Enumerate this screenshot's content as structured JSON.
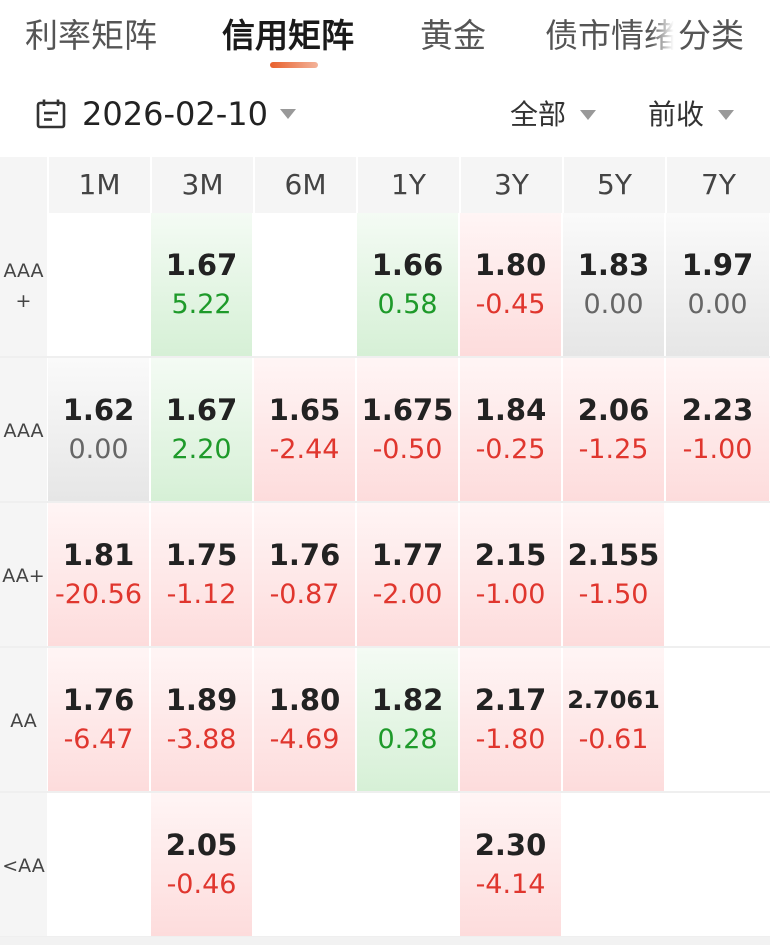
{
  "tabs": [
    {
      "label": "利率矩阵",
      "active": false
    },
    {
      "label": "信用矩阵",
      "active": true
    },
    {
      "label": "黄金",
      "active": false
    },
    {
      "label": "债市情绪",
      "active": false
    },
    {
      "label": "分类",
      "active": false
    }
  ],
  "filter": {
    "date": "2026-02-10",
    "scope": "全部",
    "compare": "前收",
    "icons": {
      "calendar": "calendar-icon",
      "caret": "caret-down-icon"
    }
  },
  "grid": {
    "columns": [
      "1M",
      "3M",
      "6M",
      "1Y",
      "3Y",
      "5Y",
      "7Y"
    ],
    "rows": [
      {
        "label": "AAA\n+",
        "cells": [
          null,
          {
            "value": "1.67",
            "change": "5.22",
            "trend": "green"
          },
          null,
          {
            "value": "1.66",
            "change": "0.58",
            "trend": "green"
          },
          {
            "value": "1.80",
            "change": "-0.45",
            "trend": "red"
          },
          {
            "value": "1.83",
            "change": "0.00",
            "trend": "gray"
          },
          {
            "value": "1.97",
            "change": "0.00",
            "trend": "gray"
          }
        ]
      },
      {
        "label": "AAA",
        "cells": [
          {
            "value": "1.62",
            "change": "0.00",
            "trend": "gray"
          },
          {
            "value": "1.67",
            "change": "2.20",
            "trend": "green"
          },
          {
            "value": "1.65",
            "change": "-2.44",
            "trend": "red"
          },
          {
            "value": "1.675",
            "change": "-0.50",
            "trend": "red"
          },
          {
            "value": "1.84",
            "change": "-0.25",
            "trend": "red"
          },
          {
            "value": "2.06",
            "change": "-1.25",
            "trend": "red"
          },
          {
            "value": "2.23",
            "change": "-1.00",
            "trend": "red"
          }
        ]
      },
      {
        "label": "AA+",
        "cells": [
          {
            "value": "1.81",
            "change": "-20.56",
            "trend": "red"
          },
          {
            "value": "1.75",
            "change": "-1.12",
            "trend": "red"
          },
          {
            "value": "1.76",
            "change": "-0.87",
            "trend": "red"
          },
          {
            "value": "1.77",
            "change": "-2.00",
            "trend": "red"
          },
          {
            "value": "2.15",
            "change": "-1.00",
            "trend": "red"
          },
          {
            "value": "2.155",
            "change": "-1.50",
            "trend": "red"
          },
          null
        ]
      },
      {
        "label": "AA",
        "cells": [
          {
            "value": "1.76",
            "change": "-6.47",
            "trend": "red"
          },
          {
            "value": "1.89",
            "change": "-3.88",
            "trend": "red"
          },
          {
            "value": "1.80",
            "change": "-4.69",
            "trend": "red"
          },
          {
            "value": "1.82",
            "change": "0.28",
            "trend": "green"
          },
          {
            "value": "2.17",
            "change": "-1.80",
            "trend": "red"
          },
          {
            "value": "2.7061",
            "change": "-0.61",
            "trend": "red"
          },
          null
        ]
      },
      {
        "label": "<AA",
        "cells": [
          null,
          {
            "value": "2.05",
            "change": "-0.46",
            "trend": "red"
          },
          null,
          null,
          {
            "value": "2.30",
            "change": "-4.14",
            "trend": "red"
          },
          null,
          null
        ]
      }
    ]
  }
}
